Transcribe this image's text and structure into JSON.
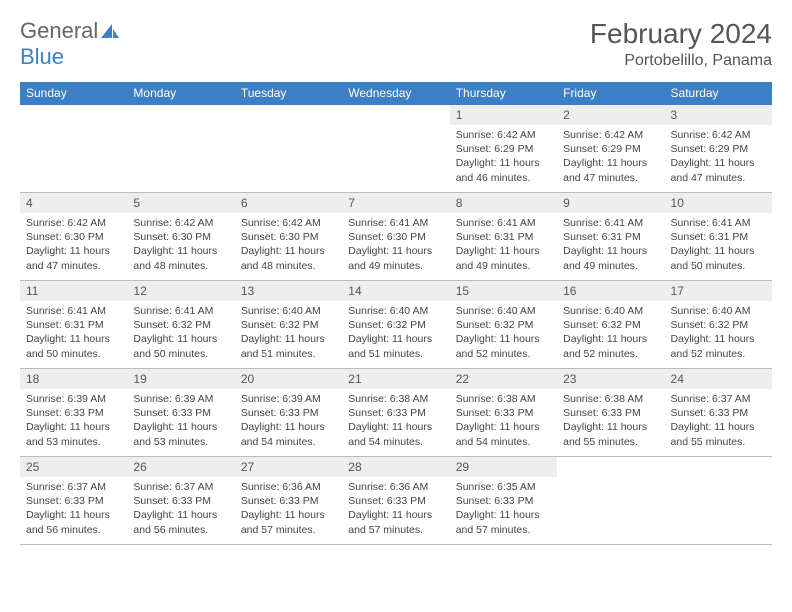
{
  "brand": {
    "part1": "General",
    "part2": "Blue"
  },
  "title": "February 2024",
  "location": "Portobelillo, Panama",
  "colors": {
    "header_bg": "#3b7fc4",
    "header_text": "#ffffff",
    "daynum_bg": "#eeeeee",
    "text": "#444444",
    "rule": "#3b7fc4"
  },
  "typography": {
    "title_fontsize": 28,
    "location_fontsize": 16,
    "dayheader_fontsize": 12,
    "detail_fontsize": 10.5
  },
  "day_names": [
    "Sunday",
    "Monday",
    "Tuesday",
    "Wednesday",
    "Thursday",
    "Friday",
    "Saturday"
  ],
  "weeks": [
    [
      null,
      null,
      null,
      null,
      {
        "n": "1",
        "sunrise": "Sunrise: 6:42 AM",
        "sunset": "Sunset: 6:29 PM",
        "daylight": "Daylight: 11 hours and 46 minutes."
      },
      {
        "n": "2",
        "sunrise": "Sunrise: 6:42 AM",
        "sunset": "Sunset: 6:29 PM",
        "daylight": "Daylight: 11 hours and 47 minutes."
      },
      {
        "n": "3",
        "sunrise": "Sunrise: 6:42 AM",
        "sunset": "Sunset: 6:29 PM",
        "daylight": "Daylight: 11 hours and 47 minutes."
      }
    ],
    [
      {
        "n": "4",
        "sunrise": "Sunrise: 6:42 AM",
        "sunset": "Sunset: 6:30 PM",
        "daylight": "Daylight: 11 hours and 47 minutes."
      },
      {
        "n": "5",
        "sunrise": "Sunrise: 6:42 AM",
        "sunset": "Sunset: 6:30 PM",
        "daylight": "Daylight: 11 hours and 48 minutes."
      },
      {
        "n": "6",
        "sunrise": "Sunrise: 6:42 AM",
        "sunset": "Sunset: 6:30 PM",
        "daylight": "Daylight: 11 hours and 48 minutes."
      },
      {
        "n": "7",
        "sunrise": "Sunrise: 6:41 AM",
        "sunset": "Sunset: 6:30 PM",
        "daylight": "Daylight: 11 hours and 49 minutes."
      },
      {
        "n": "8",
        "sunrise": "Sunrise: 6:41 AM",
        "sunset": "Sunset: 6:31 PM",
        "daylight": "Daylight: 11 hours and 49 minutes."
      },
      {
        "n": "9",
        "sunrise": "Sunrise: 6:41 AM",
        "sunset": "Sunset: 6:31 PM",
        "daylight": "Daylight: 11 hours and 49 minutes."
      },
      {
        "n": "10",
        "sunrise": "Sunrise: 6:41 AM",
        "sunset": "Sunset: 6:31 PM",
        "daylight": "Daylight: 11 hours and 50 minutes."
      }
    ],
    [
      {
        "n": "11",
        "sunrise": "Sunrise: 6:41 AM",
        "sunset": "Sunset: 6:31 PM",
        "daylight": "Daylight: 11 hours and 50 minutes."
      },
      {
        "n": "12",
        "sunrise": "Sunrise: 6:41 AM",
        "sunset": "Sunset: 6:32 PM",
        "daylight": "Daylight: 11 hours and 50 minutes."
      },
      {
        "n": "13",
        "sunrise": "Sunrise: 6:40 AM",
        "sunset": "Sunset: 6:32 PM",
        "daylight": "Daylight: 11 hours and 51 minutes."
      },
      {
        "n": "14",
        "sunrise": "Sunrise: 6:40 AM",
        "sunset": "Sunset: 6:32 PM",
        "daylight": "Daylight: 11 hours and 51 minutes."
      },
      {
        "n": "15",
        "sunrise": "Sunrise: 6:40 AM",
        "sunset": "Sunset: 6:32 PM",
        "daylight": "Daylight: 11 hours and 52 minutes."
      },
      {
        "n": "16",
        "sunrise": "Sunrise: 6:40 AM",
        "sunset": "Sunset: 6:32 PM",
        "daylight": "Daylight: 11 hours and 52 minutes."
      },
      {
        "n": "17",
        "sunrise": "Sunrise: 6:40 AM",
        "sunset": "Sunset: 6:32 PM",
        "daylight": "Daylight: 11 hours and 52 minutes."
      }
    ],
    [
      {
        "n": "18",
        "sunrise": "Sunrise: 6:39 AM",
        "sunset": "Sunset: 6:33 PM",
        "daylight": "Daylight: 11 hours and 53 minutes."
      },
      {
        "n": "19",
        "sunrise": "Sunrise: 6:39 AM",
        "sunset": "Sunset: 6:33 PM",
        "daylight": "Daylight: 11 hours and 53 minutes."
      },
      {
        "n": "20",
        "sunrise": "Sunrise: 6:39 AM",
        "sunset": "Sunset: 6:33 PM",
        "daylight": "Daylight: 11 hours and 54 minutes."
      },
      {
        "n": "21",
        "sunrise": "Sunrise: 6:38 AM",
        "sunset": "Sunset: 6:33 PM",
        "daylight": "Daylight: 11 hours and 54 minutes."
      },
      {
        "n": "22",
        "sunrise": "Sunrise: 6:38 AM",
        "sunset": "Sunset: 6:33 PM",
        "daylight": "Daylight: 11 hours and 54 minutes."
      },
      {
        "n": "23",
        "sunrise": "Sunrise: 6:38 AM",
        "sunset": "Sunset: 6:33 PM",
        "daylight": "Daylight: 11 hours and 55 minutes."
      },
      {
        "n": "24",
        "sunrise": "Sunrise: 6:37 AM",
        "sunset": "Sunset: 6:33 PM",
        "daylight": "Daylight: 11 hours and 55 minutes."
      }
    ],
    [
      {
        "n": "25",
        "sunrise": "Sunrise: 6:37 AM",
        "sunset": "Sunset: 6:33 PM",
        "daylight": "Daylight: 11 hours and 56 minutes."
      },
      {
        "n": "26",
        "sunrise": "Sunrise: 6:37 AM",
        "sunset": "Sunset: 6:33 PM",
        "daylight": "Daylight: 11 hours and 56 minutes."
      },
      {
        "n": "27",
        "sunrise": "Sunrise: 6:36 AM",
        "sunset": "Sunset: 6:33 PM",
        "daylight": "Daylight: 11 hours and 57 minutes."
      },
      {
        "n": "28",
        "sunrise": "Sunrise: 6:36 AM",
        "sunset": "Sunset: 6:33 PM",
        "daylight": "Daylight: 11 hours and 57 minutes."
      },
      {
        "n": "29",
        "sunrise": "Sunrise: 6:35 AM",
        "sunset": "Sunset: 6:33 PM",
        "daylight": "Daylight: 11 hours and 57 minutes."
      },
      null,
      null
    ]
  ]
}
